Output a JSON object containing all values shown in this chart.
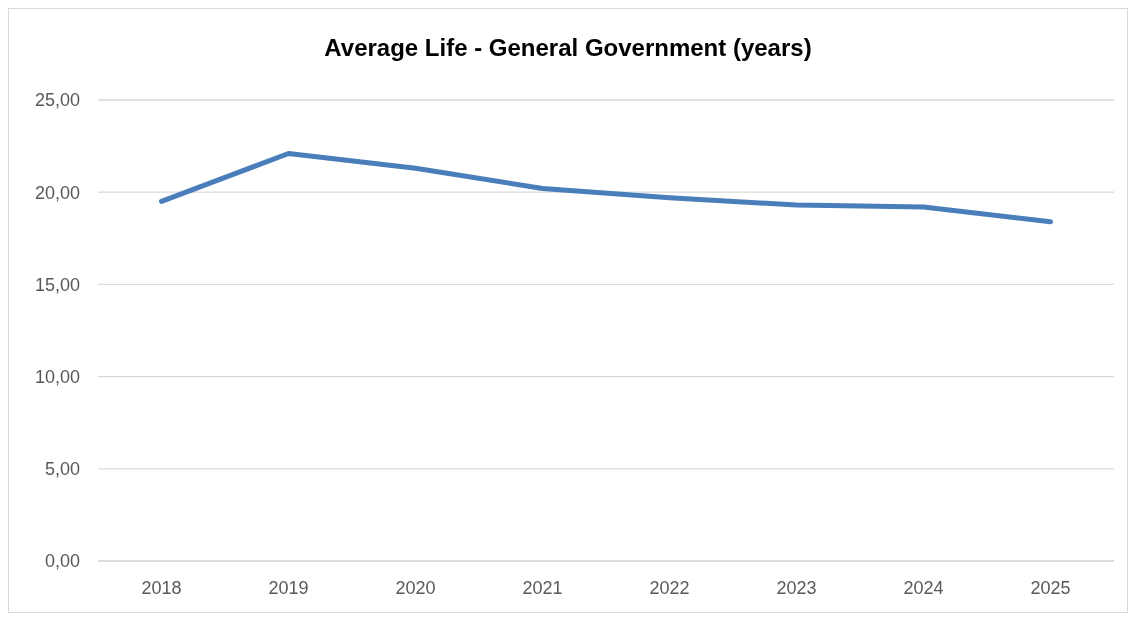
{
  "chart_data": {
    "type": "line",
    "title": "Average Life - General Government (years)",
    "categories": [
      "2018",
      "2019",
      "2020",
      "2021",
      "2022",
      "2023",
      "2024",
      "2025"
    ],
    "series": [
      {
        "color": "#4a7ebb",
        "values": [
          19.5,
          22.1,
          21.3,
          20.2,
          19.7,
          19.3,
          19.2,
          18.4
        ]
      }
    ],
    "ylim": [
      0,
      25
    ],
    "yticks": [
      {
        "value": 0,
        "label": "0,00"
      },
      {
        "value": 5,
        "label": "5,00"
      },
      {
        "value": 10,
        "label": "10,00"
      },
      {
        "value": 15,
        "label": "15,00"
      },
      {
        "value": 20,
        "label": "20,00"
      },
      {
        "value": 25,
        "label": "25,00"
      }
    ],
    "grid": "y",
    "marker": "none",
    "line_style": "solid"
  }
}
